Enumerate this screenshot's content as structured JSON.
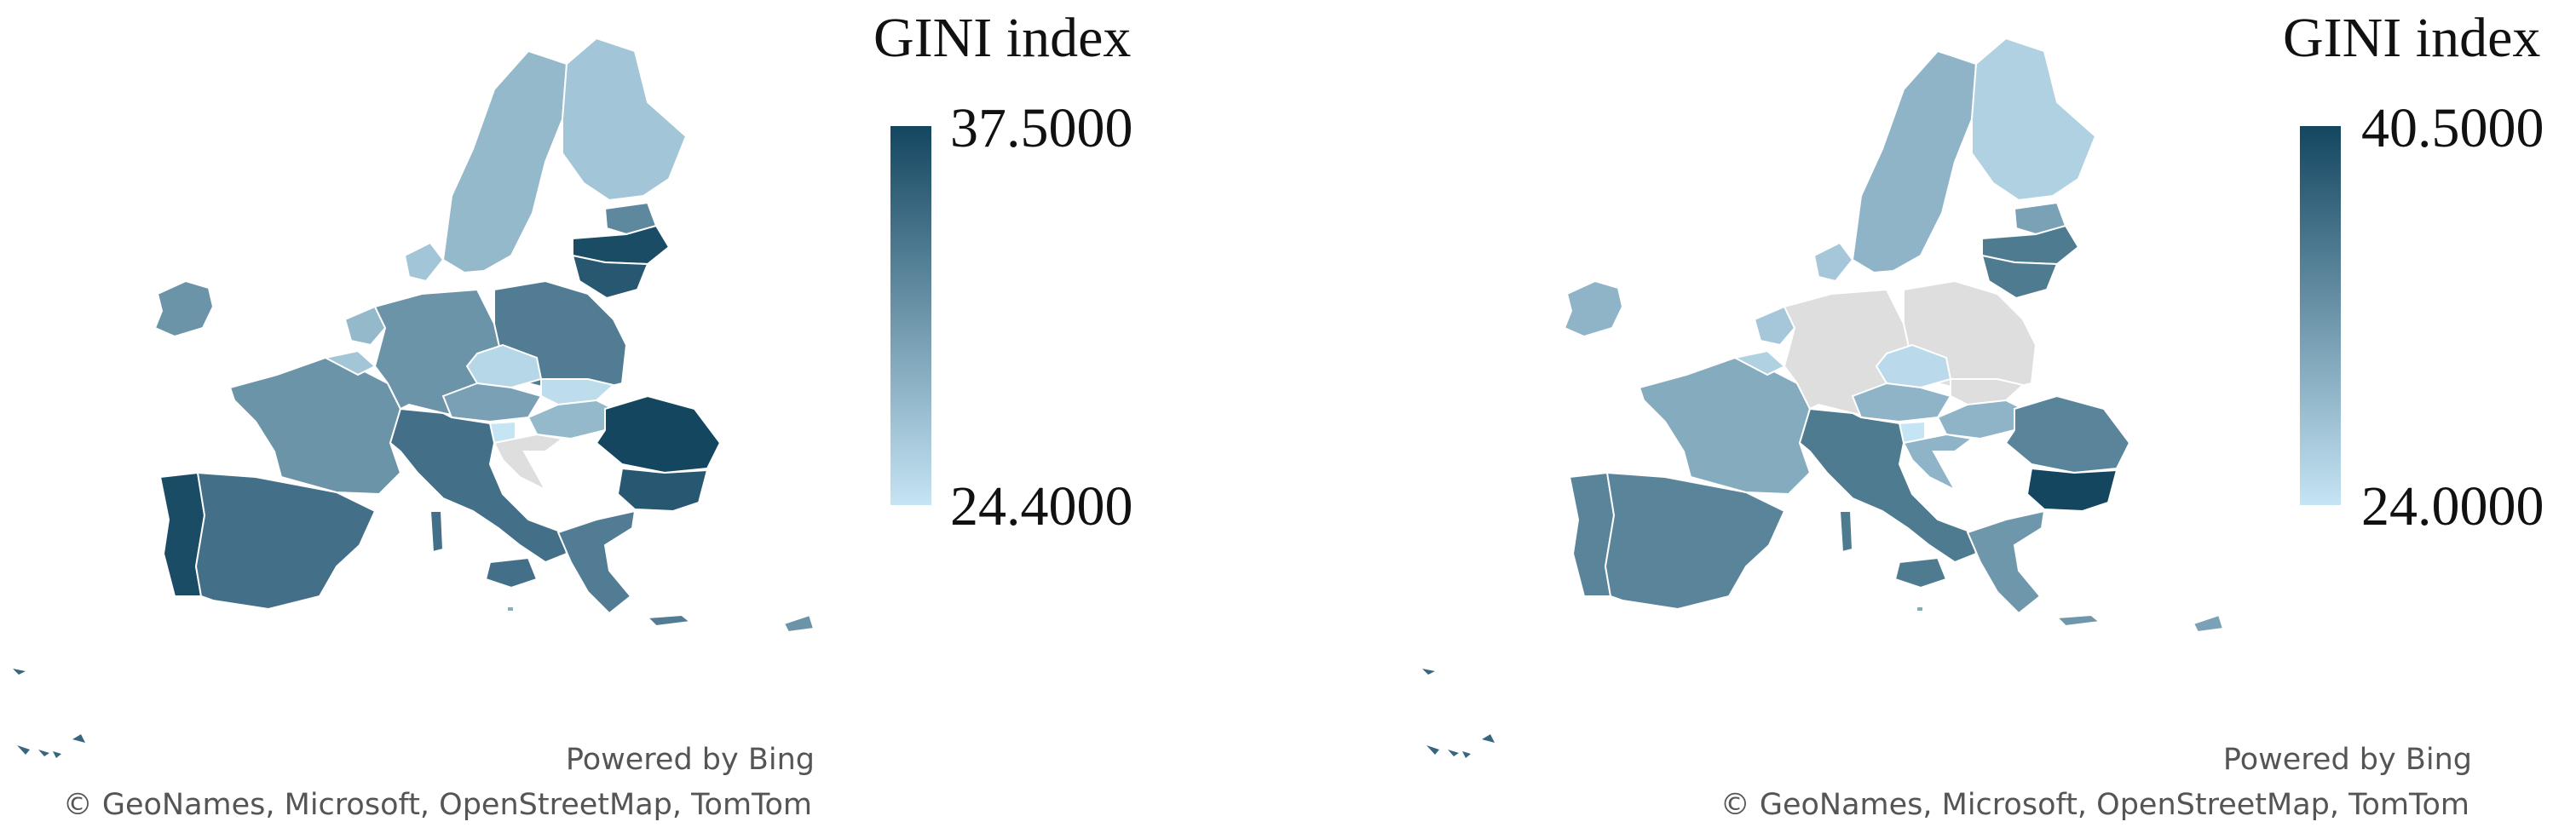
{
  "colors": {
    "scale_low": "#c5e4f4",
    "scale_high": "#144660",
    "no_data": "#dedede",
    "border": "#ffffff"
  },
  "maps": [
    {
      "legend": {
        "title": "GINI index",
        "max": "37.5000",
        "min": "24.4000",
        "max_value": 37.5,
        "min_value": 24.4
      },
      "credits": {
        "powered_by": "Powered by Bing",
        "copyright": "© GeoNames, Microsoft, OpenStreetMap, TomTom"
      },
      "regions": [
        {
          "id": "ireland",
          "value": 31
        },
        {
          "id": "portugal",
          "value": 37
        },
        {
          "id": "spain",
          "value": 34
        },
        {
          "id": "france",
          "value": 31
        },
        {
          "id": "belgium",
          "value": 27
        },
        {
          "id": "netherlands",
          "value": 28
        },
        {
          "id": "germany",
          "value": 31
        },
        {
          "id": "denmark",
          "value": 27
        },
        {
          "id": "sweden",
          "value": 28
        },
        {
          "id": "finland",
          "value": 27
        },
        {
          "id": "estonia",
          "value": 32
        },
        {
          "id": "latvia",
          "value": 37
        },
        {
          "id": "lithuania",
          "value": 36
        },
        {
          "id": "poland",
          "value": 33
        },
        {
          "id": "czechia",
          "value": 25.5
        },
        {
          "id": "slovakia",
          "value": 25
        },
        {
          "id": "austria",
          "value": 30
        },
        {
          "id": "hungary",
          "value": 28
        },
        {
          "id": "slovenia",
          "value": 24.4
        },
        {
          "id": "croatia",
          "value": null
        },
        {
          "id": "italy",
          "value": 34
        },
        {
          "id": "romania",
          "value": 37.5
        },
        {
          "id": "bulgaria",
          "value": 36
        },
        {
          "id": "greece",
          "value": 33
        },
        {
          "id": "cyprus",
          "value": 31
        },
        {
          "id": "malta",
          "value": 29
        }
      ]
    },
    {
      "legend": {
        "title": "GINI index",
        "max": "40.5000",
        "min": "24.0000",
        "max_value": 40.5,
        "min_value": 24.0
      },
      "credits": {
        "powered_by": "Powered by Bing",
        "copyright": "© GeoNames, Microsoft, OpenStreetMap, TomTom"
      },
      "regions": [
        {
          "id": "ireland",
          "value": 29
        },
        {
          "id": "portugal",
          "value": 34
        },
        {
          "id": "spain",
          "value": 34
        },
        {
          "id": "france",
          "value": 30
        },
        {
          "id": "belgium",
          "value": 26
        },
        {
          "id": "netherlands",
          "value": 27
        },
        {
          "id": "germany",
          "value": null
        },
        {
          "id": "denmark",
          "value": 27
        },
        {
          "id": "sweden",
          "value": 29
        },
        {
          "id": "finland",
          "value": 26
        },
        {
          "id": "estonia",
          "value": 31
        },
        {
          "id": "latvia",
          "value": 35
        },
        {
          "id": "lithuania",
          "value": 35
        },
        {
          "id": "poland",
          "value": null
        },
        {
          "id": "czechia",
          "value": 25
        },
        {
          "id": "slovakia",
          "value": null
        },
        {
          "id": "austria",
          "value": 29
        },
        {
          "id": "hungary",
          "value": 29
        },
        {
          "id": "slovenia",
          "value": 24
        },
        {
          "id": "croatia",
          "value": 29
        },
        {
          "id": "italy",
          "value": 35
        },
        {
          "id": "romania",
          "value": 34
        },
        {
          "id": "bulgaria",
          "value": 40.5
        },
        {
          "id": "greece",
          "value": 32
        },
        {
          "id": "cyprus",
          "value": 31
        },
        {
          "id": "malta",
          "value": 30
        }
      ]
    }
  ]
}
